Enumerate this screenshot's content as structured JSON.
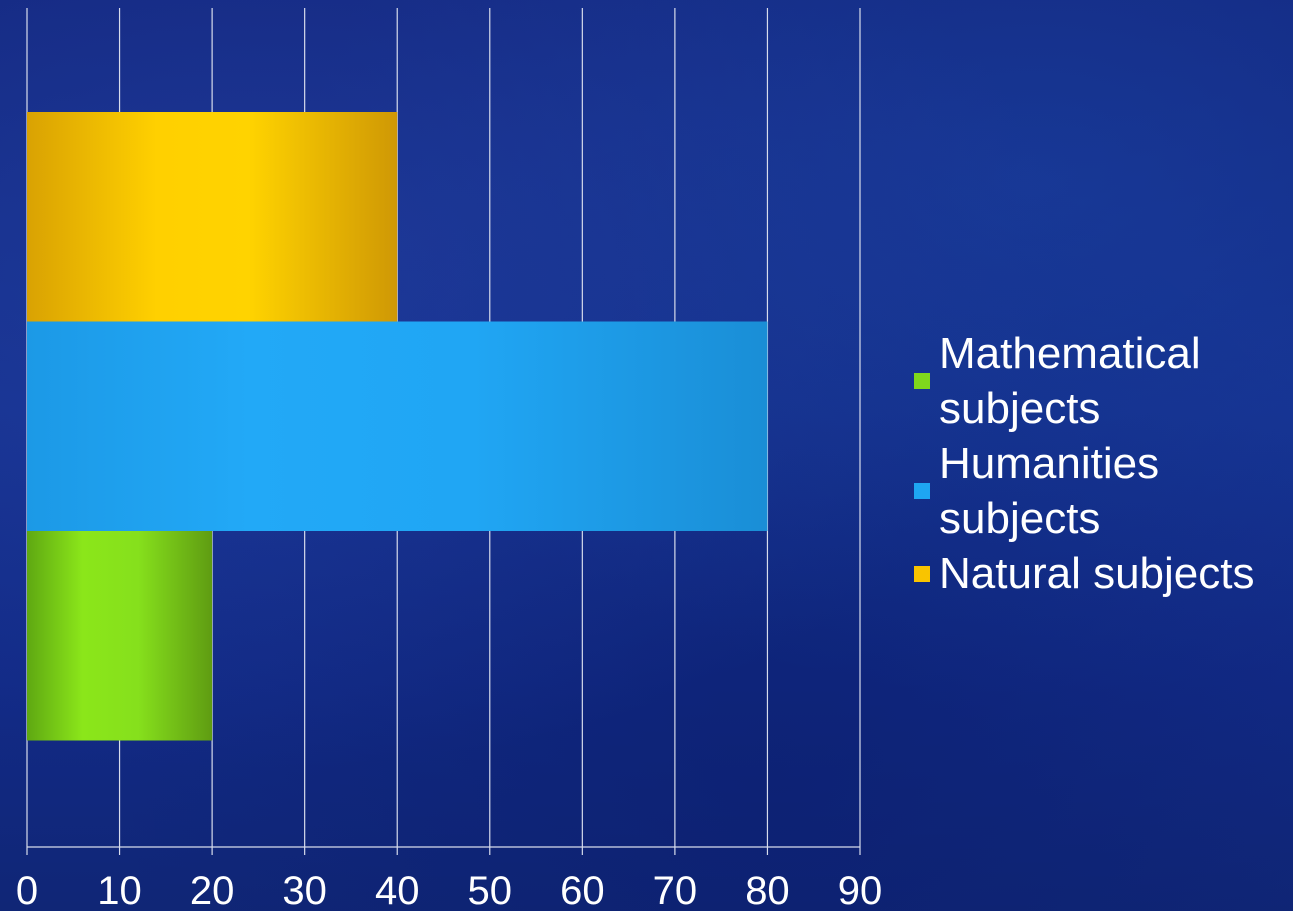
{
  "chart_data": {
    "type": "bar",
    "orientation": "horizontal",
    "categories": [
      "Mathematical subjects",
      "Humanities subjects",
      "Natural subjects"
    ],
    "values": [
      20,
      80,
      40
    ],
    "colors": [
      "#7fd81c",
      "#1ea6f2",
      "#f9c400"
    ],
    "title": "",
    "xlabel": "",
    "ylabel": "",
    "xlim": [
      0,
      90
    ],
    "xticks": [
      "0",
      "10",
      "20",
      "30",
      "40",
      "50",
      "60",
      "70",
      "80",
      "90"
    ],
    "grid": true,
    "legend_position": "right"
  },
  "legend": {
    "items": [
      {
        "label": "Mathematical subjects",
        "color": "#7fd81c"
      },
      {
        "label": "Humanities subjects",
        "color": "#1ea6f2"
      },
      {
        "label": "Natural subjects",
        "color": "#f9c400"
      }
    ]
  }
}
